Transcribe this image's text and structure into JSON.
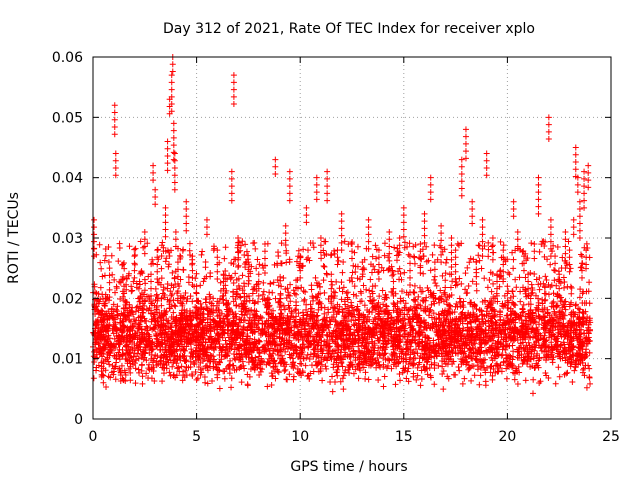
{
  "chart_data": {
    "type": "scatter",
    "title": "Day 312 of 2021, Rate Of TEC Index for receiver xplo",
    "xlabel": "GPS time / hours",
    "ylabel": "ROTI / TECUs",
    "xlim": [
      0,
      25
    ],
    "ylim": [
      0,
      0.06
    ],
    "xticks": [
      0,
      5,
      10,
      15,
      20,
      25
    ],
    "yticks": [
      0,
      0.01,
      0.02,
      0.03,
      0.04,
      0.05,
      0.06
    ],
    "xtick_labels": [
      "0",
      "5",
      "10",
      "15",
      "20",
      "25"
    ],
    "ytick_labels": [
      "0",
      "0.01",
      "0.02",
      "0.03",
      "0.04",
      "0.05",
      "0.06"
    ],
    "grid": true,
    "marker": "+",
    "color": "#ff0000",
    "series": [
      {
        "name": "ROTI",
        "x": [
          0.05,
          0.1,
          0.1,
          0.4,
          0.5,
          0.8,
          1.0,
          1.05,
          1.1,
          1.3,
          1.5,
          1.8,
          2.0,
          2.2,
          2.5,
          2.8,
          2.9,
          3.0,
          3.1,
          3.3,
          3.5,
          3.6,
          3.7,
          3.8,
          3.85,
          3.9,
          3.95,
          4.0,
          4.1,
          4.3,
          4.5,
          4.8,
          5.0,
          5.2,
          5.5,
          5.8,
          6.0,
          6.3,
          6.5,
          6.7,
          6.8,
          7.0,
          7.3,
          7.5,
          7.8,
          8.0,
          8.3,
          8.5,
          8.8,
          9.0,
          9.3,
          9.5,
          9.8,
          10.0,
          10.3,
          10.5,
          10.8,
          11.0,
          11.3,
          11.5,
          11.8,
          12.0,
          12.3,
          12.5,
          12.8,
          13.0,
          13.3,
          13.5,
          13.8,
          14.0,
          14.3,
          14.5,
          14.8,
          15.0,
          15.3,
          15.5,
          15.8,
          16.0,
          16.3,
          16.5,
          16.8,
          17.0,
          17.3,
          17.5,
          17.8,
          18.0,
          18.3,
          18.5,
          18.8,
          19.0,
          19.3,
          19.5,
          19.8,
          20.0,
          20.3,
          20.5,
          20.8,
          21.0,
          21.3,
          21.5,
          21.8,
          22.0,
          22.1,
          22.3,
          22.5,
          22.8,
          23.0,
          23.2,
          23.3,
          23.4,
          23.5,
          23.6,
          23.7,
          23.8,
          23.9
        ],
        "y": [
          0.033,
          0.021,
          0.015,
          0.018,
          0.012,
          0.025,
          0.019,
          0.052,
          0.044,
          0.016,
          0.022,
          0.014,
          0.027,
          0.018,
          0.031,
          0.024,
          0.042,
          0.038,
          0.028,
          0.02,
          0.035,
          0.046,
          0.053,
          0.057,
          0.06,
          0.049,
          0.044,
          0.031,
          0.026,
          0.018,
          0.036,
          0.027,
          0.022,
          0.016,
          0.033,
          0.02,
          0.028,
          0.024,
          0.019,
          0.041,
          0.057,
          0.03,
          0.022,
          0.026,
          0.018,
          0.024,
          0.029,
          0.021,
          0.043,
          0.017,
          0.032,
          0.041,
          0.023,
          0.027,
          0.035,
          0.019,
          0.04,
          0.03,
          0.041,
          0.024,
          0.028,
          0.034,
          0.021,
          0.029,
          0.018,
          0.026,
          0.033,
          0.022,
          0.028,
          0.019,
          0.031,
          0.024,
          0.03,
          0.035,
          0.027,
          0.021,
          0.029,
          0.034,
          0.04,
          0.026,
          0.032,
          0.023,
          0.03,
          0.028,
          0.043,
          0.048,
          0.036,
          0.026,
          0.033,
          0.044,
          0.03,
          0.024,
          0.028,
          0.022,
          0.036,
          0.031,
          0.027,
          0.024,
          0.029,
          0.04,
          0.022,
          0.05,
          0.033,
          0.027,
          0.024,
          0.031,
          0.028,
          0.033,
          0.045,
          0.04,
          0.036,
          0.027,
          0.041,
          0.028,
          0.042
        ]
      }
    ],
    "dense_band": {
      "y_low": 0.006,
      "y_high": 0.022,
      "y_center": 0.0135
    }
  }
}
